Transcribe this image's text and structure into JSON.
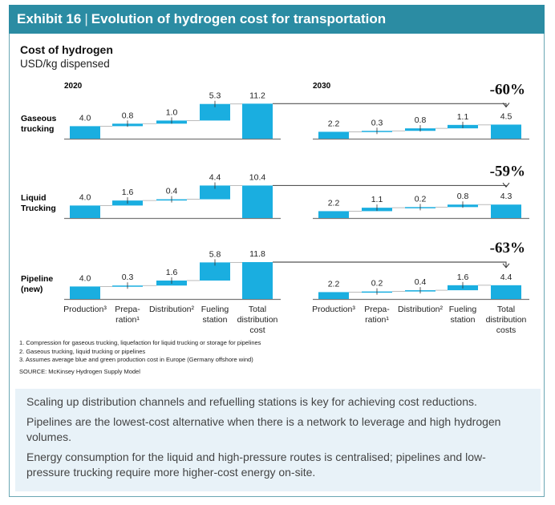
{
  "header": {
    "exhibit": "Exhibit 16",
    "title": "Evolution of hydrogen cost for transportation"
  },
  "chart_title": "Cost of hydrogen",
  "chart_subtitle": "USD/kg dispensed",
  "colors": {
    "bar": "#1aaee0",
    "header": "#2b8ca3",
    "connector": "#999999",
    "note_box": "#e8f2f8"
  },
  "chart_data": {
    "type": "bar",
    "subtype": "waterfall",
    "periods": [
      "2020",
      "2030"
    ],
    "categories_2020": [
      [
        "Production³"
      ],
      [
        "Prepa-",
        "ration¹"
      ],
      [
        "Distribution²"
      ],
      [
        "Fueling",
        "station"
      ],
      [
        "Total",
        "distribution",
        "cost"
      ]
    ],
    "categories_2030": [
      [
        "Production³"
      ],
      [
        "Prepa-",
        "ration¹"
      ],
      [
        "Distribution²"
      ],
      [
        "Fueling",
        "station"
      ],
      [
        "Total",
        "distribution",
        "costs"
      ]
    ],
    "rows": [
      {
        "label": [
          "Gaseous",
          "trucking"
        ],
        "values_2020": [
          4.0,
          0.8,
          1.0,
          5.3,
          11.2
        ],
        "values_2030": [
          2.2,
          0.3,
          0.8,
          1.1,
          4.5
        ],
        "change": "-60%"
      },
      {
        "label": [
          "Liquid",
          "Trucking"
        ],
        "values_2020": [
          4.0,
          1.6,
          0.4,
          4.4,
          10.4
        ],
        "values_2030": [
          2.2,
          1.1,
          0.2,
          0.8,
          4.3
        ],
        "change": "-59%"
      },
      {
        "label": [
          "Pipeline",
          "(new)"
        ],
        "values_2020": [
          4.0,
          0.3,
          1.6,
          5.8,
          11.8
        ],
        "values_2030": [
          2.2,
          0.2,
          0.4,
          1.6,
          4.4
        ],
        "change": "-63%"
      }
    ]
  },
  "footnotes": [
    "1.   Compression for gaseous trucking, liquefaction for liquid trucking or storage for pipelines",
    "2.   Gaseous trucking, liquid trucking or pipelines",
    "3.   Assumes average blue and green production cost in Europe (Germany offshore wind)"
  ],
  "source": "SOURCE:  McKinsey Hydrogen Supply Model",
  "notes": [
    "Scaling up distribution channels and refuelling stations is key for achieving cost reductions.",
    "Pipelines are the lowest-cost alternative when there is a network to leverage and high hydrogen volumes.",
    "Energy consumption for the liquid and high-pressure routes is centralised; pipelines and low-pressure trucking require more higher-cost energy on-site."
  ]
}
